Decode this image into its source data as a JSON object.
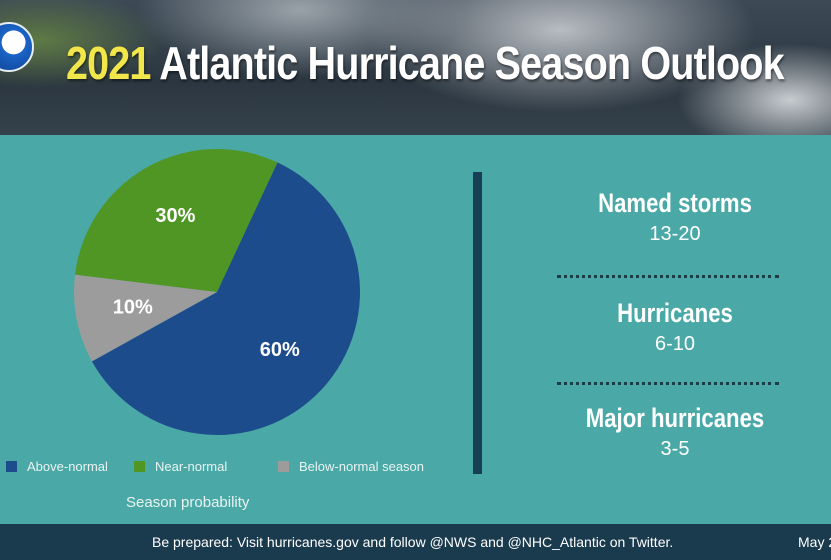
{
  "header": {
    "title_year": "2021",
    "title_rest": "Atlantic Hurricane Season Outlook"
  },
  "chart_data": {
    "type": "pie",
    "title": "",
    "slices": [
      {
        "label": "Above-normal",
        "value": 60,
        "display": "60%",
        "color": "#1d4c8c"
      },
      {
        "label": "Near-normal",
        "value": 30,
        "display": "30%",
        "color": "#4f9624"
      },
      {
        "label": "Below-normal season",
        "value": 10,
        "display": "10%",
        "color": "#9c9c9c"
      }
    ],
    "caption": "Season probability",
    "legend_position": "bottom"
  },
  "stats": [
    {
      "label": "Named storms",
      "value": "13-20"
    },
    {
      "label": "Hurricanes",
      "value": "6-10"
    },
    {
      "label": "Major hurricanes",
      "value": "3-5"
    }
  ],
  "footer": {
    "text": "Be prepared: Visit hurricanes.gov and follow @NWS and @NHC_Atlantic on Twitter.",
    "date": "May 2"
  },
  "colors": {
    "background": "#4aa9a6",
    "title_accent": "#f2e74a",
    "footer_bg": "#1a3a4e",
    "divider": "#173f55"
  }
}
